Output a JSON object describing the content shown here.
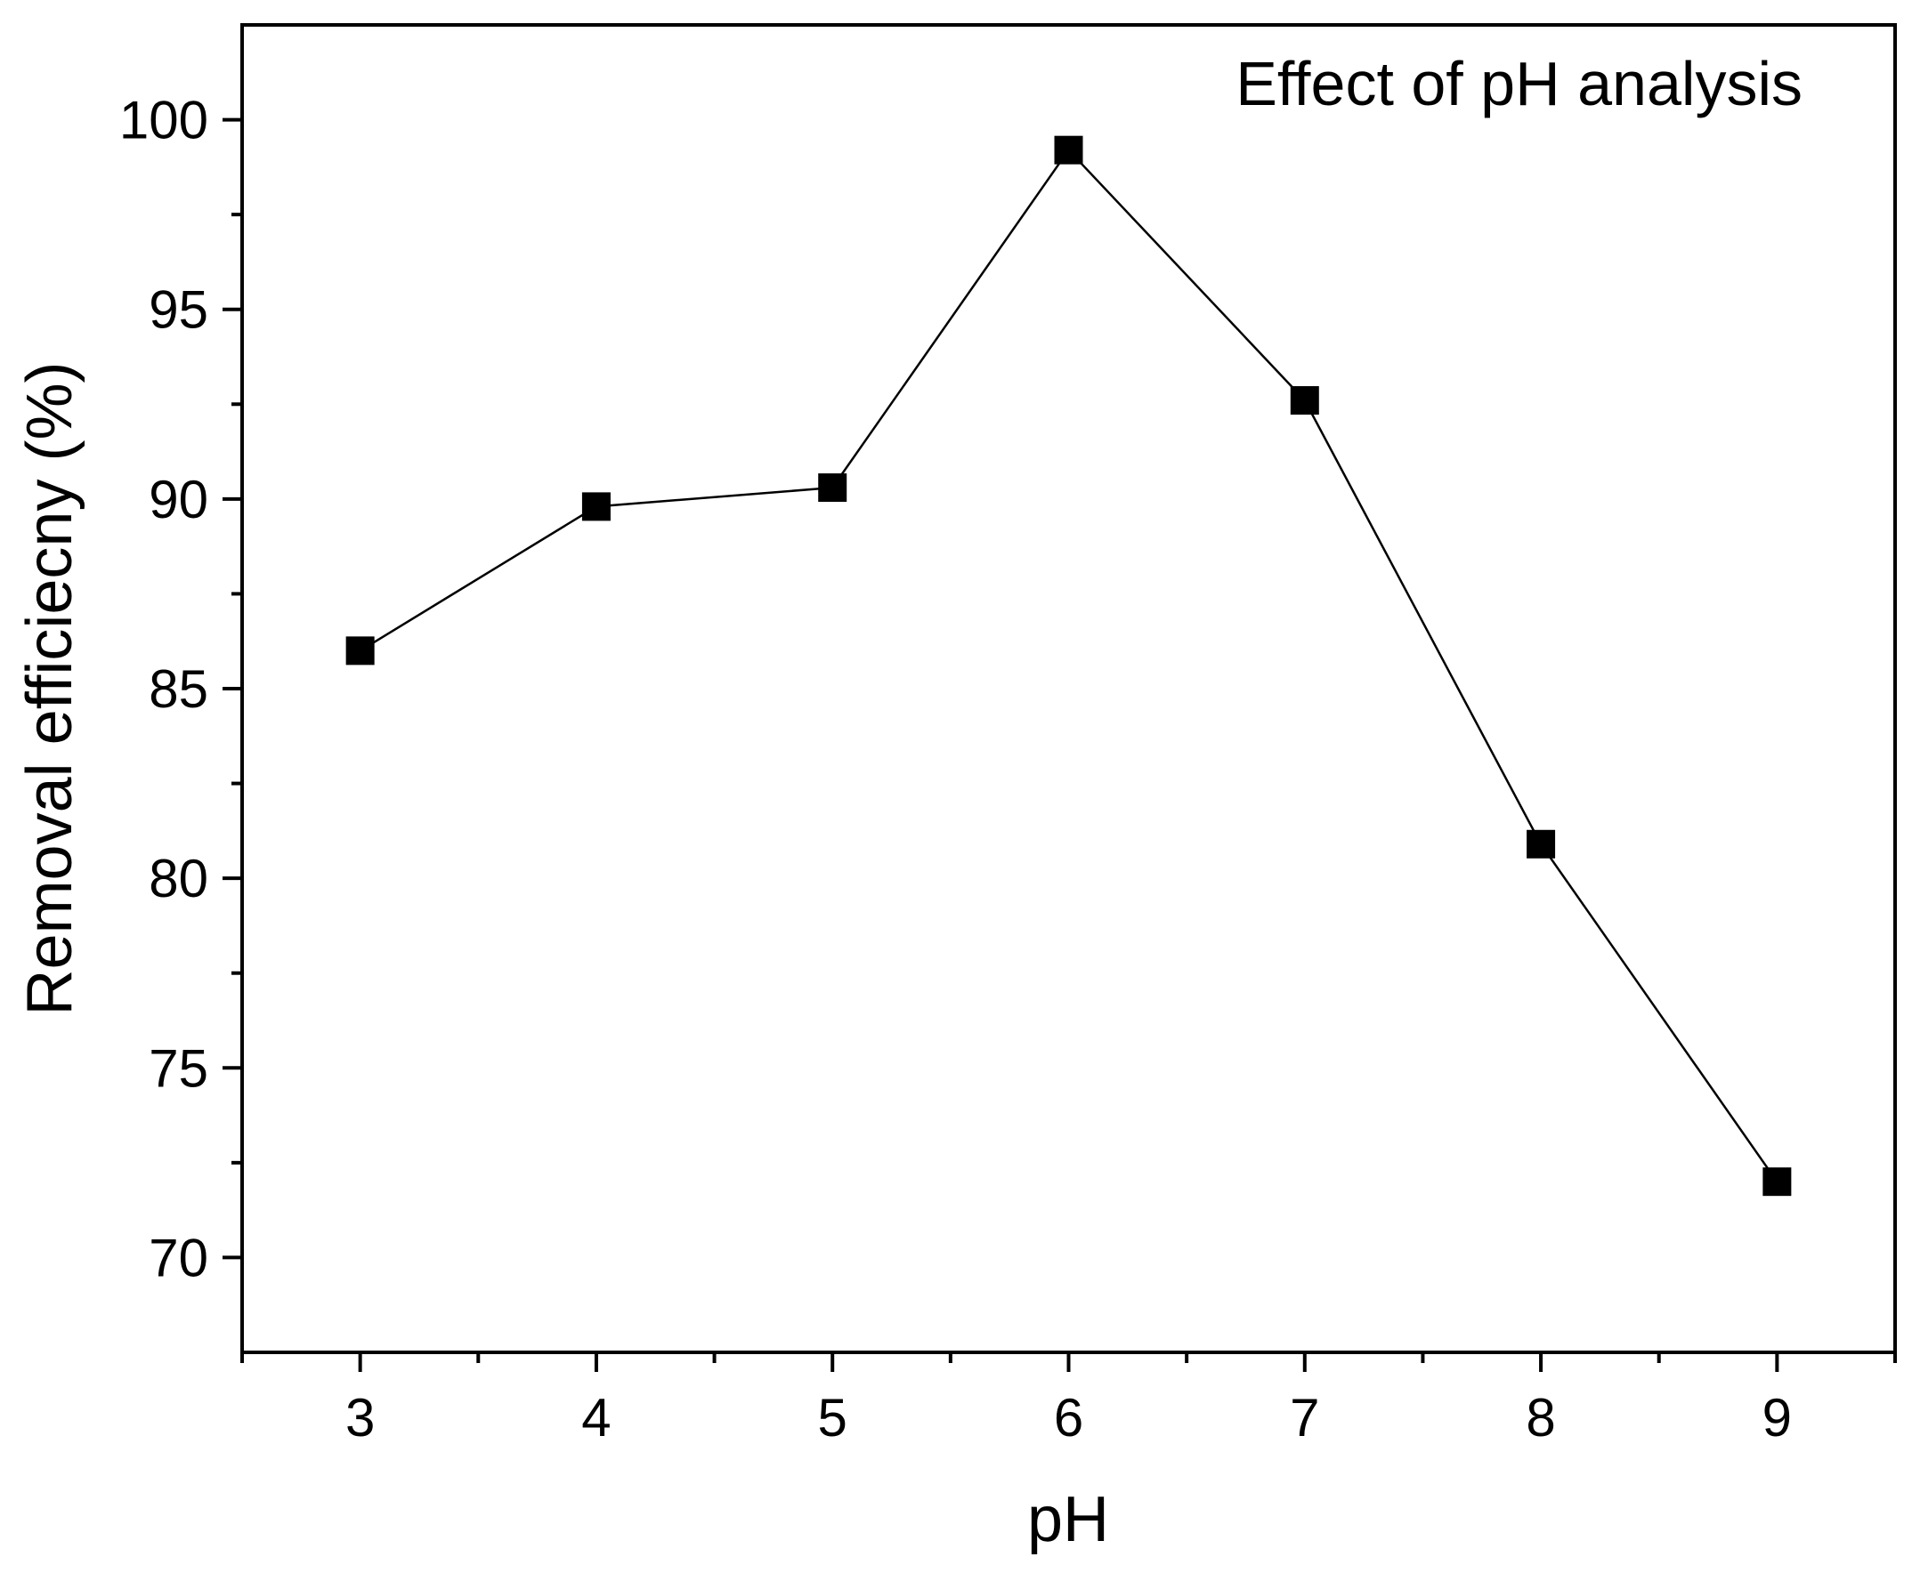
{
  "chart_data": {
    "type": "line",
    "title": "Effect of pH analysis",
    "xlabel": "pH",
    "ylabel": "Removal efficiecny (%)",
    "x": [
      3,
      4,
      5,
      6,
      7,
      8,
      9
    ],
    "series": [
      {
        "name": "Removal efficiecny",
        "marker": "square",
        "color": "#000000",
        "values": [
          86.0,
          89.8,
          90.3,
          99.2,
          92.6,
          80.9,
          72.0
        ]
      }
    ],
    "xlim": [
      2.5,
      9.5
    ],
    "ylim": [
      67.5,
      102.5
    ],
    "xticks": [
      3,
      4,
      5,
      6,
      7,
      8,
      9
    ],
    "xtick_labels": [
      "3",
      "4",
      "5",
      "6",
      "7",
      "8",
      "9"
    ],
    "yticks": [
      70,
      75,
      80,
      85,
      90,
      95,
      100
    ],
    "ytick_labels": [
      "70",
      "75",
      "80",
      "85",
      "90",
      "95",
      "100"
    ],
    "x_minor_ticks": [
      2.5,
      3.5,
      4.5,
      5.5,
      6.5,
      7.5,
      8.5,
      9.5
    ],
    "y_minor_ticks": [
      72.5,
      77.5,
      82.5,
      87.5,
      92.5,
      97.5
    ],
    "grid": false,
    "title_position": "top-right inside plot"
  }
}
